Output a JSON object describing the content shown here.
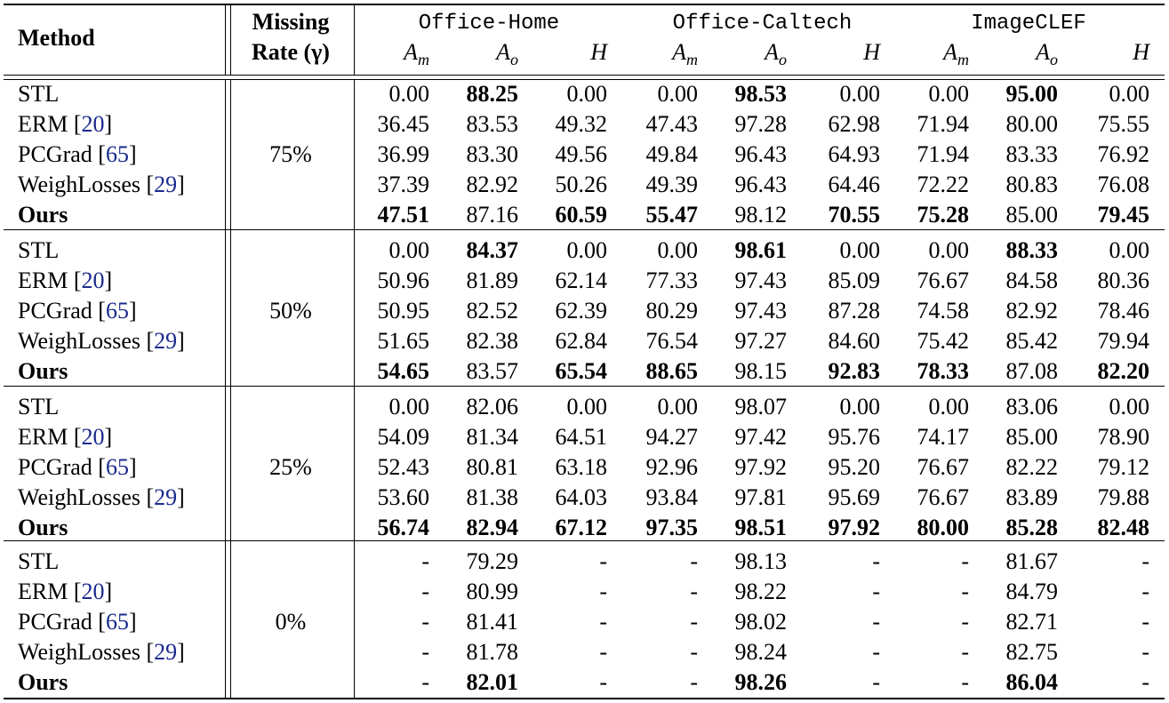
{
  "header": {
    "method": "Method",
    "missing_line1": "Missing",
    "missing_line2": "Rate (γ)",
    "datasets": [
      "Office-Home",
      "Office-Caltech",
      "ImageCLEF"
    ],
    "metrics": [
      {
        "main": "A",
        "sub": "m"
      },
      {
        "main": "A",
        "sub": "o"
      },
      {
        "main": "H",
        "sub": ""
      }
    ]
  },
  "groups": [
    {
      "rate": "75%",
      "rows": [
        {
          "method": "STL",
          "cite": "",
          "bold_method": false,
          "values": [
            "0.00",
            "88.25",
            "0.00",
            "0.00",
            "98.53",
            "0.00",
            "0.00",
            "95.00",
            "0.00"
          ],
          "bold": [
            false,
            true,
            false,
            false,
            true,
            false,
            false,
            true,
            false
          ]
        },
        {
          "method": "ERM",
          "cite": "20",
          "bold_method": false,
          "values": [
            "36.45",
            "83.53",
            "49.32",
            "47.43",
            "97.28",
            "62.98",
            "71.94",
            "80.00",
            "75.55"
          ],
          "bold": [
            false,
            false,
            false,
            false,
            false,
            false,
            false,
            false,
            false
          ]
        },
        {
          "method": "PCGrad",
          "cite": "65",
          "bold_method": false,
          "values": [
            "36.99",
            "83.30",
            "49.56",
            "49.84",
            "96.43",
            "64.93",
            "71.94",
            "83.33",
            "76.92"
          ],
          "bold": [
            false,
            false,
            false,
            false,
            false,
            false,
            false,
            false,
            false
          ]
        },
        {
          "method": "WeighLosses",
          "cite": "29",
          "bold_method": false,
          "values": [
            "37.39",
            "82.92",
            "50.26",
            "49.39",
            "96.43",
            "64.46",
            "72.22",
            "80.83",
            "76.08"
          ],
          "bold": [
            false,
            false,
            false,
            false,
            false,
            false,
            false,
            false,
            false
          ]
        },
        {
          "method": "Ours",
          "cite": "",
          "bold_method": true,
          "values": [
            "47.51",
            "87.16",
            "60.59",
            "55.47",
            "98.12",
            "70.55",
            "75.28",
            "85.00",
            "79.45"
          ],
          "bold": [
            true,
            false,
            true,
            true,
            false,
            true,
            true,
            false,
            true
          ]
        }
      ]
    },
    {
      "rate": "50%",
      "rows": [
        {
          "method": "STL",
          "cite": "",
          "bold_method": false,
          "values": [
            "0.00",
            "84.37",
            "0.00",
            "0.00",
            "98.61",
            "0.00",
            "0.00",
            "88.33",
            "0.00"
          ],
          "bold": [
            false,
            true,
            false,
            false,
            true,
            false,
            false,
            true,
            false
          ]
        },
        {
          "method": "ERM",
          "cite": "20",
          "bold_method": false,
          "values": [
            "50.96",
            "81.89",
            "62.14",
            "77.33",
            "97.43",
            "85.09",
            "76.67",
            "84.58",
            "80.36"
          ],
          "bold": [
            false,
            false,
            false,
            false,
            false,
            false,
            false,
            false,
            false
          ]
        },
        {
          "method": "PCGrad",
          "cite": "65",
          "bold_method": false,
          "values": [
            "50.95",
            "82.52",
            "62.39",
            "80.29",
            "97.43",
            "87.28",
            "74.58",
            "82.92",
            "78.46"
          ],
          "bold": [
            false,
            false,
            false,
            false,
            false,
            false,
            false,
            false,
            false
          ]
        },
        {
          "method": "WeighLosses",
          "cite": "29",
          "bold_method": false,
          "values": [
            "51.65",
            "82.38",
            "62.84",
            "76.54",
            "97.27",
            "84.60",
            "75.42",
            "85.42",
            "79.94"
          ],
          "bold": [
            false,
            false,
            false,
            false,
            false,
            false,
            false,
            false,
            false
          ]
        },
        {
          "method": "Ours",
          "cite": "",
          "bold_method": true,
          "values": [
            "54.65",
            "83.57",
            "65.54",
            "88.65",
            "98.15",
            "92.83",
            "78.33",
            "87.08",
            "82.20"
          ],
          "bold": [
            true,
            false,
            true,
            true,
            false,
            true,
            true,
            false,
            true
          ]
        }
      ]
    },
    {
      "rate": "25%",
      "rows": [
        {
          "method": "STL",
          "cite": "",
          "bold_method": false,
          "values": [
            "0.00",
            "82.06",
            "0.00",
            "0.00",
            "98.07",
            "0.00",
            "0.00",
            "83.06",
            "0.00"
          ],
          "bold": [
            false,
            false,
            false,
            false,
            false,
            false,
            false,
            false,
            false
          ]
        },
        {
          "method": "ERM",
          "cite": "20",
          "bold_method": false,
          "values": [
            "54.09",
            "81.34",
            "64.51",
            "94.27",
            "97.42",
            "95.76",
            "74.17",
            "85.00",
            "78.90"
          ],
          "bold": [
            false,
            false,
            false,
            false,
            false,
            false,
            false,
            false,
            false
          ]
        },
        {
          "method": "PCGrad",
          "cite": "65",
          "bold_method": false,
          "values": [
            "52.43",
            "80.81",
            "63.18",
            "92.96",
            "97.92",
            "95.20",
            "76.67",
            "82.22",
            "79.12"
          ],
          "bold": [
            false,
            false,
            false,
            false,
            false,
            false,
            false,
            false,
            false
          ]
        },
        {
          "method": "WeighLosses",
          "cite": "29",
          "bold_method": false,
          "values": [
            "53.60",
            "81.38",
            "64.03",
            "93.84",
            "97.81",
            "95.69",
            "76.67",
            "83.89",
            "79.88"
          ],
          "bold": [
            false,
            false,
            false,
            false,
            false,
            false,
            false,
            false,
            false
          ]
        },
        {
          "method": "Ours",
          "cite": "",
          "bold_method": true,
          "values": [
            "56.74",
            "82.94",
            "67.12",
            "97.35",
            "98.51",
            "97.92",
            "80.00",
            "85.28",
            "82.48"
          ],
          "bold": [
            true,
            true,
            true,
            true,
            true,
            true,
            true,
            true,
            true
          ]
        }
      ]
    },
    {
      "rate": "0%",
      "rows": [
        {
          "method": "STL",
          "cite": "",
          "bold_method": false,
          "values": [
            "-",
            "79.29",
            "-",
            "-",
            "98.13",
            "-",
            "-",
            "81.67",
            "-"
          ],
          "bold": [
            false,
            false,
            false,
            false,
            false,
            false,
            false,
            false,
            false
          ]
        },
        {
          "method": "ERM",
          "cite": "20",
          "bold_method": false,
          "values": [
            "-",
            "80.99",
            "-",
            "-",
            "98.22",
            "-",
            "-",
            "84.79",
            "-"
          ],
          "bold": [
            false,
            false,
            false,
            false,
            false,
            false,
            false,
            false,
            false
          ]
        },
        {
          "method": "PCGrad",
          "cite": "65",
          "bold_method": false,
          "values": [
            "-",
            "81.41",
            "-",
            "-",
            "98.02",
            "-",
            "-",
            "82.71",
            "-"
          ],
          "bold": [
            false,
            false,
            false,
            false,
            false,
            false,
            false,
            false,
            false
          ]
        },
        {
          "method": "WeighLosses",
          "cite": "29",
          "bold_method": false,
          "values": [
            "-",
            "81.78",
            "-",
            "-",
            "98.24",
            "-",
            "-",
            "82.75",
            "-"
          ],
          "bold": [
            false,
            false,
            false,
            false,
            false,
            false,
            false,
            false,
            false
          ]
        },
        {
          "method": "Ours",
          "cite": "",
          "bold_method": true,
          "values": [
            "-",
            "82.01",
            "-",
            "-",
            "98.26",
            "-",
            "-",
            "86.04",
            "-"
          ],
          "bold": [
            false,
            true,
            false,
            false,
            true,
            false,
            false,
            true,
            false
          ]
        }
      ]
    }
  ]
}
